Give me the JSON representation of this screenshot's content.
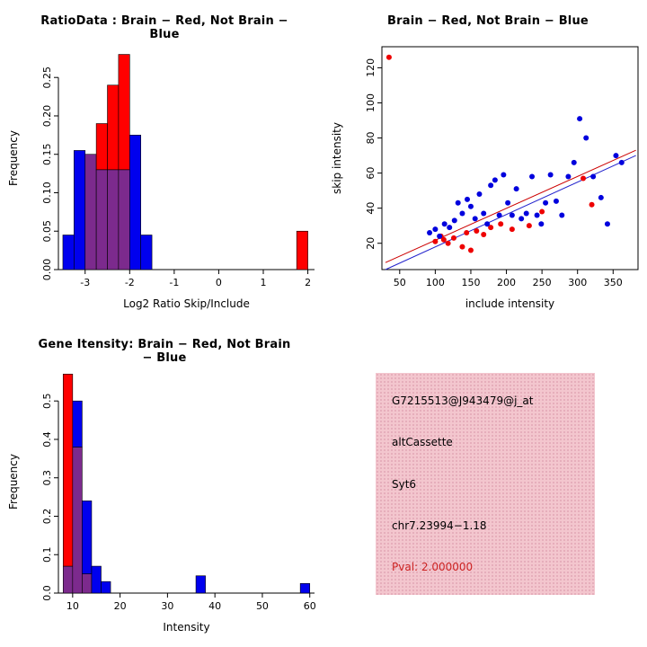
{
  "info_panel": {
    "bg_color": "#f3c6ce",
    "pval_color": "#cc2222",
    "probe_id": "G7215513@J943479@j_at",
    "event_type": "altCassette",
    "gene": "Syt6",
    "location": "chr7.23994−1.18",
    "pval": "Pval: 2.000000"
  },
  "chart_data": [
    {
      "id": "ratio-histogram",
      "type": "histogram",
      "title": "RatioData : Brain − Red, Not Brain − Blue",
      "xlabel": "Log2 Ratio Skip/Include",
      "ylabel": "Frequency",
      "xlim": [
        -3.6,
        2.15
      ],
      "ylim": [
        0,
        0.29
      ],
      "xticks": [
        -3,
        -2,
        -1,
        0,
        1,
        2
      ],
      "yticks": [
        0,
        0.05,
        0.1,
        0.15,
        0.2,
        0.25
      ],
      "ytick_labels": [
        "0.00",
        "0.05",
        "0.10",
        "0.15",
        "0.20",
        "0.25"
      ],
      "bin_width": 0.25,
      "grid": false,
      "legend": "none",
      "overlap_color": "#7c2a8d",
      "series": [
        {
          "name": "Brain",
          "color": "#ff0000",
          "bins": [
            [
              -3.0,
              0.15
            ],
            [
              -2.75,
              0.19
            ],
            [
              -2.5,
              0.24
            ],
            [
              -2.25,
              0.28
            ],
            [
              1.75,
              0.05
            ]
          ]
        },
        {
          "name": "Not Brain",
          "color": "#0000ee",
          "bins": [
            [
              -3.5,
              0.045
            ],
            [
              -3.25,
              0.155
            ],
            [
              -3.0,
              0.15
            ],
            [
              -2.75,
              0.13
            ],
            [
              -2.5,
              0.13
            ],
            [
              -2.25,
              0.13
            ],
            [
              -2.0,
              0.175
            ],
            [
              -1.75,
              0.045
            ]
          ]
        }
      ]
    },
    {
      "id": "intensity-scatter",
      "type": "scatter",
      "title": "Brain − Red, Not Brain − Blue",
      "xlabel": "include intensity",
      "ylabel": "skip intensity",
      "xlim": [
        25,
        385
      ],
      "ylim": [
        5,
        132
      ],
      "xticks": [
        50,
        100,
        150,
        200,
        250,
        300,
        350
      ],
      "yticks": [
        20,
        40,
        60,
        80,
        100,
        120
      ],
      "grid": false,
      "legend": "none",
      "series": [
        {
          "name": "Brain",
          "color": "#ee0000",
          "points": [
            [
              35,
              126
            ],
            [
              100,
              21
            ],
            [
              108,
              24
            ],
            [
              112,
              22
            ],
            [
              118,
              20
            ],
            [
              126,
              23
            ],
            [
              138,
              18
            ],
            [
              144,
              26
            ],
            [
              150,
              16
            ],
            [
              158,
              27
            ],
            [
              168,
              25
            ],
            [
              178,
              29
            ],
            [
              192,
              31
            ],
            [
              208,
              28
            ],
            [
              232,
              30
            ],
            [
              250,
              38
            ],
            [
              308,
              57
            ],
            [
              320,
              42
            ]
          ]
        },
        {
          "name": "Not Brain",
          "color": "#0000dd",
          "points": [
            [
              92,
              26
            ],
            [
              100,
              28
            ],
            [
              106,
              24
            ],
            [
              113,
              31
            ],
            [
              120,
              29
            ],
            [
              127,
              33
            ],
            [
              132,
              43
            ],
            [
              138,
              37
            ],
            [
              145,
              45
            ],
            [
              150,
              41
            ],
            [
              156,
              34
            ],
            [
              162,
              48
            ],
            [
              168,
              37
            ],
            [
              173,
              31
            ],
            [
              178,
              53
            ],
            [
              184,
              56
            ],
            [
              190,
              36
            ],
            [
              196,
              59
            ],
            [
              202,
              43
            ],
            [
              208,
              36
            ],
            [
              214,
              51
            ],
            [
              221,
              34
            ],
            [
              228,
              37
            ],
            [
              236,
              58
            ],
            [
              243,
              36
            ],
            [
              249,
              31
            ],
            [
              255,
              43
            ],
            [
              262,
              59
            ],
            [
              270,
              44
            ],
            [
              278,
              36
            ],
            [
              287,
              58
            ],
            [
              295,
              66
            ],
            [
              303,
              91
            ],
            [
              312,
              80
            ],
            [
              322,
              58
            ],
            [
              333,
              46
            ],
            [
              342,
              31
            ],
            [
              354,
              70
            ],
            [
              362,
              66
            ]
          ]
        }
      ],
      "lines": [
        {
          "name": "brain-fit",
          "color": "#cc0000",
          "x1": 30,
          "y1": 9,
          "x2": 382,
          "y2": 73
        },
        {
          "name": "notbrain-fit",
          "color": "#2222cc",
          "x1": 30,
          "y1": 5,
          "x2": 382,
          "y2": 70
        }
      ]
    },
    {
      "id": "gene-intensity-histogram",
      "type": "histogram",
      "title": "Gene Itensity: Brain − Red, Not Brain − Blue",
      "xlabel": "Intensity",
      "ylabel": "Frequency",
      "xlim": [
        7,
        61
      ],
      "ylim": [
        0,
        0.58
      ],
      "xticks": [
        10,
        20,
        30,
        40,
        50,
        60
      ],
      "yticks": [
        0,
        0.1,
        0.2,
        0.3,
        0.4,
        0.5
      ],
      "ytick_labels": [
        "0.0",
        "0.1",
        "0.2",
        "0.3",
        "0.4",
        "0.5"
      ],
      "bin_width": 2,
      "grid": false,
      "legend": "none",
      "overlap_color": "#7c2a8d",
      "series": [
        {
          "name": "Brain",
          "color": "#ff0000",
          "bins": [
            [
              8,
              0.57
            ],
            [
              10,
              0.38
            ],
            [
              12,
              0.05
            ]
          ]
        },
        {
          "name": "Not Brain",
          "color": "#0000ee",
          "bins": [
            [
              8,
              0.07
            ],
            [
              10,
              0.5
            ],
            [
              12,
              0.24
            ],
            [
              14,
              0.07
            ],
            [
              16,
              0.03
            ],
            [
              36,
              0.045
            ],
            [
              58,
              0.025
            ]
          ]
        }
      ]
    }
  ]
}
